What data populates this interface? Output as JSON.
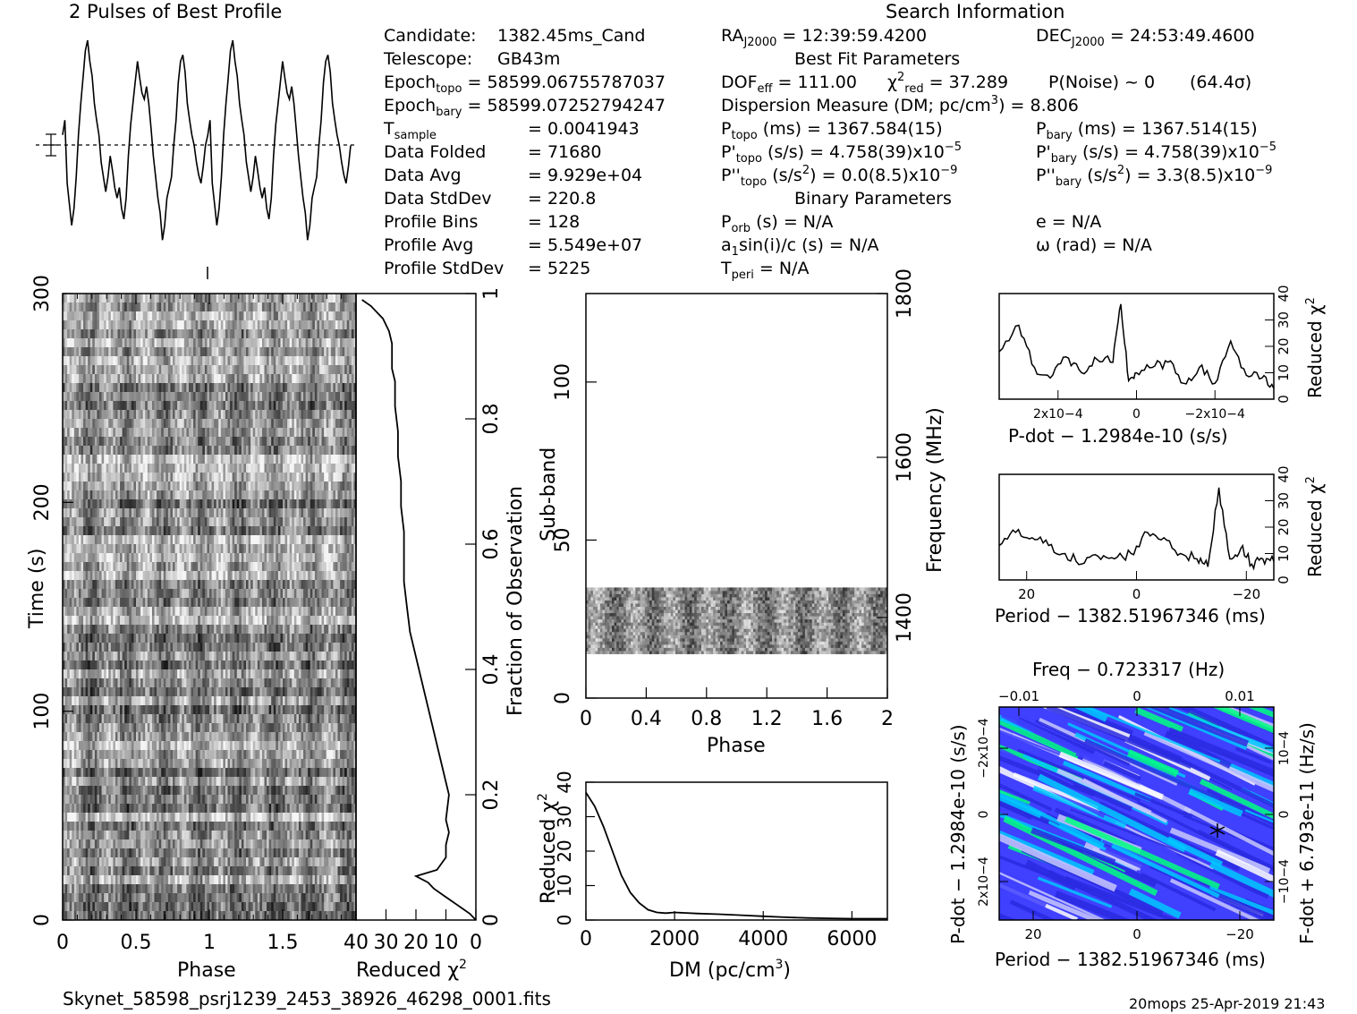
{
  "header": {
    "profile_title": "2 Pulses of Best Profile",
    "search_title": "Search Information"
  },
  "candidate": {
    "candidate_label": "Candidate:",
    "candidate_value": "1382.45ms_Cand",
    "telescope_label": "Telescope:",
    "telescope_value": "GB43m",
    "epoch_topo_label": "Epoch",
    "epoch_topo_sub": "topo",
    "epoch_topo_value": "= 58599.06755787037",
    "epoch_bary_label": "Epoch",
    "epoch_bary_sub": "bary",
    "epoch_bary_value": "= 58599.07252794247",
    "tsample_label": "T",
    "tsample_sub": "sample",
    "tsample_value": "=  0.0041943",
    "data_folded_label": "Data Folded",
    "data_folded_value": "=  71680",
    "data_avg_label": "Data Avg",
    "data_avg_value": "=  9.929e+04",
    "data_std_label": "Data StdDev",
    "data_std_value": "=  220.8",
    "profile_bins_label": "Profile Bins",
    "profile_bins_value": "=  128",
    "profile_avg_label": "Profile Avg",
    "profile_avg_value": "=  5.549e+07",
    "profile_std_label": "Profile StdDev",
    "profile_std_value": "=  5225"
  },
  "search": {
    "ra_label": "RA",
    "ra_sub": "J2000",
    "ra_value": "= 12:39:59.4200",
    "dec_label": "DEC",
    "dec_sub": "J2000",
    "dec_value": "= 24:53:49.4600",
    "best_fit_title": "Best Fit Parameters",
    "dof_label": "DOF",
    "dof_sub": "eff",
    "dof_value": "= 111.00",
    "chi_label": "χ",
    "chi_sup": "2",
    "chi_sub": "red",
    "chi_value": "= 37.289",
    "pnoise_text": "P(Noise) ~ 0",
    "sigma_text": "(64.4σ)",
    "dm_text_a": "Dispersion Measure (DM; pc/cm",
    "dm_sup": "3",
    "dm_text_b": ") = 8.806",
    "ptopo_label": "P",
    "ptopo_sub": "topo",
    "ptopo_value": "(ms) =  1367.584(15)",
    "pbary_label": "P",
    "pbary_sub": "bary",
    "pbary_value": "(ms) =  1367.514(15)",
    "pdtopo_label": "P'",
    "pdtopo_sub": "topo",
    "pdtopo_value": "(s/s) =  4.758(39)x10",
    "pdtopo_exp": "−5",
    "pdbary_label": "P'",
    "pdbary_sub": "bary",
    "pdbary_value": "(s/s) =  4.758(39)x10",
    "pdbary_exp": "−5",
    "pddtopo_label": "P''",
    "pddtopo_sub": "topo",
    "pddtopo_value_a": "(s/s",
    "pddtopo_value_sup": "2",
    "pddtopo_value_b": ") = 0.0(8.5)x10",
    "pddtopo_exp": "−9",
    "pddbary_label": "P''",
    "pddbary_sub": "bary",
    "pddbary_value_a": "(s/s",
    "pddbary_value_sup": "2",
    "pddbary_value_b": ") =  3.3(8.5)x10",
    "pddbary_exp": "−9",
    "binary_title": "Binary Parameters",
    "porb_label": "P",
    "porb_sub": "orb",
    "porb_value": "(s) = N/A",
    "e_text": "e = N/A",
    "a1_text_a": "a",
    "a1_sub": "1",
    "a1_text_b": "sin(i)/c (s) = N/A",
    "omega_text": "ω (rad) = N/A",
    "tperi_label": "T",
    "tperi_sub": "peri",
    "tperi_value": "= N/A"
  },
  "footer": {
    "filename": "Skynet_58598_psrj1239_2453_38926_46298_0001.fits",
    "stamp": "20mops 25-Apr-2019 21:43"
  },
  "chart_data": [
    {
      "id": "profile",
      "type": "line",
      "title": "2 Pulses of Best Profile",
      "xlim": [
        0,
        2
      ],
      "values": [
        0.55,
        0.62,
        0.32,
        0.22,
        0.12,
        0.2,
        0.35,
        0.55,
        0.7,
        0.82,
        0.95,
        1.0,
        0.9,
        0.83,
        0.7,
        0.62,
        0.55,
        0.42,
        0.35,
        0.28,
        0.35,
        0.45,
        0.38,
        0.3,
        0.25,
        0.3,
        0.2,
        0.15,
        0.25,
        0.45,
        0.6,
        0.7,
        0.8,
        0.9,
        0.82,
        0.75,
        0.72,
        0.78,
        0.7,
        0.58,
        0.45,
        0.35,
        0.25,
        0.18,
        0.05,
        0.12,
        0.25,
        0.3,
        0.35,
        0.5,
        0.62,
        0.8,
        0.9,
        0.93,
        0.85,
        0.7,
        0.62,
        0.55,
        0.5,
        0.42,
        0.36,
        0.32,
        0.4,
        0.5,
        0.55,
        0.62,
        0.32,
        0.22,
        0.12,
        0.2,
        0.35,
        0.55,
        0.7,
        0.82,
        0.95,
        1.0,
        0.9,
        0.83,
        0.7,
        0.62,
        0.55,
        0.42,
        0.35,
        0.28,
        0.35,
        0.45,
        0.38,
        0.3,
        0.25,
        0.3,
        0.2,
        0.15,
        0.25,
        0.45,
        0.6,
        0.7,
        0.8,
        0.9,
        0.82,
        0.75,
        0.72,
        0.78,
        0.7,
        0.58,
        0.45,
        0.35,
        0.25,
        0.18,
        0.05,
        0.12,
        0.25,
        0.3,
        0.35,
        0.5,
        0.62,
        0.8,
        0.9,
        0.93,
        0.85,
        0.7,
        0.62,
        0.55,
        0.5,
        0.42,
        0.36,
        0.32,
        0.4,
        0.5
      ]
    },
    {
      "id": "time_phase",
      "type": "heatmap",
      "xlabel": "Phase",
      "ylabel": "Time (s)",
      "xlim": [
        0,
        2
      ],
      "ylim": [
        0,
        300
      ],
      "xticks": [
        "0",
        "0.5",
        "1",
        "1.5"
      ],
      "yticks": [
        "0",
        "100",
        "200",
        "300"
      ]
    },
    {
      "id": "reduced_chi2_vs_fraction",
      "type": "line",
      "xlabel": "Reduced χ2",
      "ylabel": "Fraction of Observation",
      "xlim": [
        40,
        0
      ],
      "ylim": [
        0,
        1
      ],
      "xticks": [
        "40",
        "30",
        "20",
        "10",
        "0"
      ],
      "yticks": [
        "0.2",
        "0.4",
        "0.6",
        "0.8",
        "1"
      ],
      "x": [
        0,
        2,
        5,
        8,
        11,
        14,
        16,
        20,
        13,
        10,
        10,
        9,
        10,
        9,
        10,
        12,
        14,
        16,
        18,
        20,
        22,
        23,
        24,
        24,
        24,
        25,
        25,
        26,
        26,
        27,
        27,
        28,
        28,
        28,
        29,
        31,
        33,
        35,
        38
      ],
      "y": [
        0,
        0.01,
        0.02,
        0.03,
        0.04,
        0.05,
        0.06,
        0.07,
        0.08,
        0.1,
        0.12,
        0.14,
        0.16,
        0.2,
        0.22,
        0.26,
        0.3,
        0.34,
        0.38,
        0.42,
        0.46,
        0.5,
        0.54,
        0.58,
        0.62,
        0.66,
        0.7,
        0.74,
        0.78,
        0.82,
        0.86,
        0.88,
        0.9,
        0.92,
        0.94,
        0.96,
        0.97,
        0.98,
        0.99
      ]
    },
    {
      "id": "subband_phase",
      "type": "heatmap",
      "xlabel": "Phase",
      "ylabel": "Sub-band",
      "y2label": "Frequency (MHz)",
      "xlim": [
        0,
        2
      ],
      "ylim": [
        0,
        128
      ],
      "xticks": [
        "0",
        "0.4",
        "0.8",
        "1.2",
        "1.6",
        "2"
      ],
      "yticks": [
        "0",
        "50",
        "100"
      ],
      "y2ticks": [
        "1400",
        "1600",
        "1800"
      ],
      "filled_subbands": [
        14,
        35
      ]
    },
    {
      "id": "dm_curve",
      "type": "line",
      "xlabel": "DM (pc/cm3)",
      "ylabel": "Reduced χ2",
      "xlim": [
        0,
        6800
      ],
      "ylim": [
        0,
        40
      ],
      "xticks": [
        "0",
        "2000",
        "4000",
        "6000"
      ],
      "yticks": [
        "0",
        "10",
        "20",
        "30",
        "40"
      ],
      "x": [
        0,
        200,
        400,
        600,
        800,
        1000,
        1200,
        1400,
        1600,
        1800,
        2000,
        2500,
        3000,
        3500,
        4000,
        4500,
        5000,
        5500,
        6000,
        6500,
        6800
      ],
      "y": [
        37,
        33,
        27,
        20,
        13,
        8,
        5,
        3,
        2.2,
        2.0,
        2.2,
        1.9,
        1.7,
        1.4,
        1.1,
        0.8,
        0.6,
        0.5,
        0.4,
        0.4,
        0.4
      ]
    },
    {
      "id": "pdot_curve",
      "type": "line",
      "xlabel": "P-dot − 1.2984e-10 (s/s)",
      "ylabel": "Reduced χ2",
      "xlim": [
        0.00035,
        -0.00035
      ],
      "ylim": [
        0,
        40
      ],
      "xticks": [
        "2x10−4",
        "0",
        "−2x10−4"
      ],
      "yticks": [
        "0",
        "10",
        "20",
        "30",
        "40"
      ],
      "x": [
        0.00035,
        0.0003,
        0.00026,
        0.00022,
        0.00018,
        0.00014,
        0.0001,
        6e-05,
        4e-05,
        2e-05,
        0,
        -4e-05,
        -8e-05,
        -0.00012,
        -0.00016,
        -0.0002,
        -0.00024,
        -0.00028,
        -0.00032,
        -0.00035
      ],
      "y": [
        18,
        28,
        12,
        8,
        16,
        10,
        15,
        14,
        36,
        7,
        10,
        12,
        14,
        6,
        12,
        6,
        22,
        9,
        8,
        4
      ]
    },
    {
      "id": "period_curve",
      "type": "line",
      "xlabel": "Period − 1382.51967346 (ms)",
      "ylabel": "Reduced χ2",
      "xlim": [
        25,
        -25
      ],
      "ylim": [
        0,
        40
      ],
      "xticks": [
        "20",
        "0",
        "−20"
      ],
      "yticks": [
        "0",
        "10",
        "20",
        "30",
        "40"
      ],
      "x": [
        25,
        22,
        19,
        16,
        13,
        10,
        7,
        4,
        1,
        -2,
        -5,
        -8,
        -11,
        -13,
        -15,
        -17,
        -19,
        -21,
        -23,
        -25
      ],
      "y": [
        13,
        18,
        16,
        13,
        10,
        6,
        9,
        8,
        10,
        18,
        16,
        10,
        8,
        5,
        35,
        8,
        12,
        6,
        8,
        7
      ]
    },
    {
      "id": "pdot_period_map",
      "type": "heatmap",
      "title": "Freq − 0.723317 (Hz)",
      "xlabel": "Period − 1382.51967346 (ms)",
      "ylabel": "P-dot − 1.2984e-10 (s/s)",
      "y2label": "F-dot + 6.793e-11 (Hz/s)",
      "xticks": [
        "20",
        "0",
        "−20"
      ],
      "x2ticks": [
        "−0.01",
        "0",
        "0.01"
      ],
      "yticks": [
        "−2x10−4",
        "0",
        "2x10−4"
      ],
      "y2ticks": [
        "10−4",
        "0",
        "−10−4"
      ],
      "colors": [
        "#4040ff",
        "#2a2ae0",
        "#00c8ff",
        "#00ff80",
        "#c8c8ff",
        "#ffffff"
      ]
    }
  ]
}
